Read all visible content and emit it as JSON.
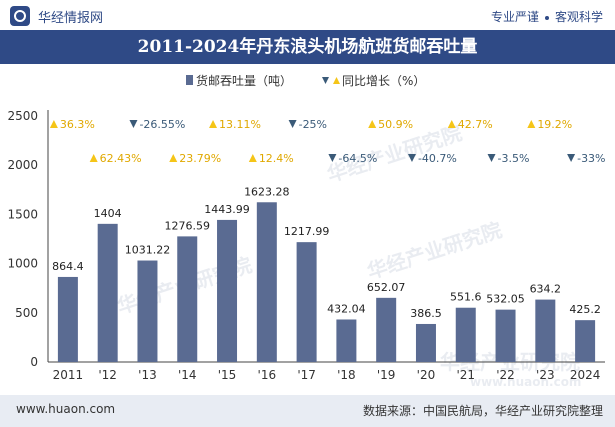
{
  "header": {
    "brand": "华经情报网",
    "tags": [
      "专业严谨",
      "客观科学"
    ]
  },
  "title": "2011-2024年丹东浪头机场航班货邮吞吐量",
  "footer": {
    "website": "www.huaon.com",
    "source": "数据来源：中国民航局，华经产业研究院整理"
  },
  "watermark": "华经产业研究院",
  "watermark_url": "www.huaon.com",
  "colors": {
    "bar": "#5a6b92",
    "up": "#f5c518",
    "down": "#3a5a78",
    "title_bg": "#2f4a86"
  },
  "chart_data": {
    "type": "bar",
    "title": "2011-2024年丹东浪头机场航班货邮吞吐量",
    "categories": [
      "2011",
      "'12",
      "'13",
      "'14",
      "'15",
      "'16",
      "'17",
      "'18",
      "'19",
      "'20",
      "'21",
      "'22",
      "'23",
      "2024"
    ],
    "series": [
      {
        "name": "货邮吞吐量（吨）",
        "values": [
          864.4,
          1404,
          1031.22,
          1276.59,
          1443.99,
          1623.28,
          1217.99,
          432.04,
          652.07,
          386.5,
          551.6,
          532.05,
          634.2,
          425.2
        ]
      }
    ],
    "growth": {
      "name": "同比增长（%）",
      "values": [
        36.3,
        62.43,
        -26.55,
        23.79,
        13.11,
        12.4,
        -25,
        -64.5,
        50.9,
        -40.7,
        42.7,
        -3.5,
        19.2,
        -33
      ],
      "labels": [
        "36.3%",
        "62.43%",
        "-26.55%",
        "23.79%",
        "13.11%",
        "12.4%",
        "-25%",
        "-64.5%",
        "50.9%",
        "-40.7%",
        "42.7%",
        "-3.5%",
        "19.2%",
        "-33%"
      ]
    },
    "legend": [
      "货邮吞吐量（吨）",
      "同比增长（%）"
    ],
    "ylim": [
      0,
      2500
    ],
    "yticks": [
      0,
      500,
      1000,
      1500,
      2000,
      2500
    ],
    "grid": false
  }
}
